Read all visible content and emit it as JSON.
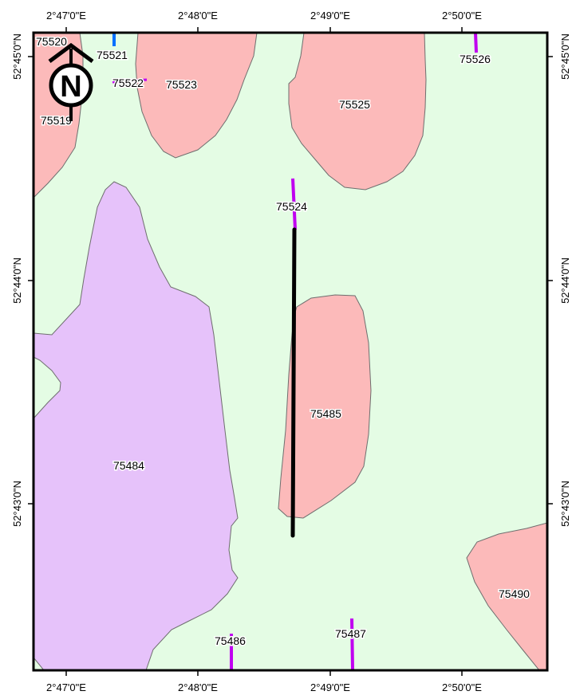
{
  "map": {
    "top_axis_labels": [
      "2°47'0\"E",
      "2°48'0\"E",
      "2°49'0\"E",
      "2°50'0\"E"
    ],
    "bottom_axis_labels": [
      "2°47'0\"E",
      "2°48'0\"E",
      "2°49'0\"E",
      "2°50'0\"E"
    ],
    "left_axis_labels": [
      "52°45'0\"N",
      "52°44'0\"N",
      "52°43'0\"N"
    ],
    "right_axis_labels": [
      "52°45'0\"N",
      "52°44'0\"N",
      "52°43'0\"N"
    ],
    "north_arrow": {
      "letter": "N"
    },
    "parcels": {
      "p75484": "75484",
      "p75485": "75485",
      "p75486": "75486",
      "p75487": "75487",
      "p75490": "75490",
      "p75519": "75519",
      "p75520": "75520",
      "p75521": "75521",
      "p75522": "75522",
      "p75523": "75523",
      "p75524": "75524",
      "p75525": "75525",
      "p75526": "75526"
    },
    "colors": {
      "background": "#e4fce4",
      "pink_zone": "#fcbaba",
      "purple_zone": "#e6c2fa",
      "outline": "#6e6e6e",
      "magenta_line": "#c000f0",
      "blue_line": "#0070ff",
      "transect_line": "#000000",
      "frame": "#000000"
    }
  }
}
